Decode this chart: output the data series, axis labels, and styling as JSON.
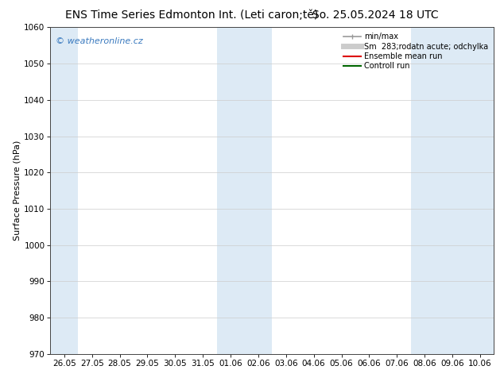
{
  "title": "ENS Time Series Edmonton Int. (Leti caron;tě)",
  "title_date": "So. 25.05.2024 18 UTC",
  "ylabel": "Surface Pressure (hPa)",
  "ylim": [
    970,
    1060
  ],
  "yticks": [
    970,
    980,
    990,
    1000,
    1010,
    1020,
    1030,
    1040,
    1050,
    1060
  ],
  "x_labels": [
    "26.05",
    "27.05",
    "28.05",
    "29.05",
    "30.05",
    "31.05",
    "01.06",
    "02.06",
    "03.06",
    "04.06",
    "05.06",
    "06.06",
    "07.06",
    "08.06",
    "09.06",
    "10.06"
  ],
  "x_dates": [
    "2024-05-26",
    "2024-05-27",
    "2024-05-28",
    "2024-05-29",
    "2024-05-30",
    "2024-05-31",
    "2024-06-01",
    "2024-06-02",
    "2024-06-03",
    "2024-06-04",
    "2024-06-05",
    "2024-06-06",
    "2024-06-07",
    "2024-06-08",
    "2024-06-09",
    "2024-06-10"
  ],
  "shaded_indices": [
    0,
    6,
    7,
    13,
    14,
    15
  ],
  "band_color": "#ddeaf5",
  "background_color": "#ffffff",
  "watermark_text": "© weatheronline.cz",
  "watermark_color": "#3a7abf",
  "legend_entries": [
    {
      "label": "min/max",
      "color": "#999999",
      "linewidth": 1.2
    },
    {
      "label": "Sm  283;rodatn acute; odchylka",
      "color": "#cccccc",
      "linewidth": 5
    },
    {
      "label": "Ensemble mean run",
      "color": "#dd0000",
      "linewidth": 1.5
    },
    {
      "label": "Controll run",
      "color": "#006600",
      "linewidth": 1.5
    }
  ],
  "grid_color": "#cccccc",
  "title_fontsize": 10,
  "axis_fontsize": 8,
  "tick_fontsize": 7.5,
  "fig_width": 6.34,
  "fig_height": 4.9,
  "dpi": 100
}
